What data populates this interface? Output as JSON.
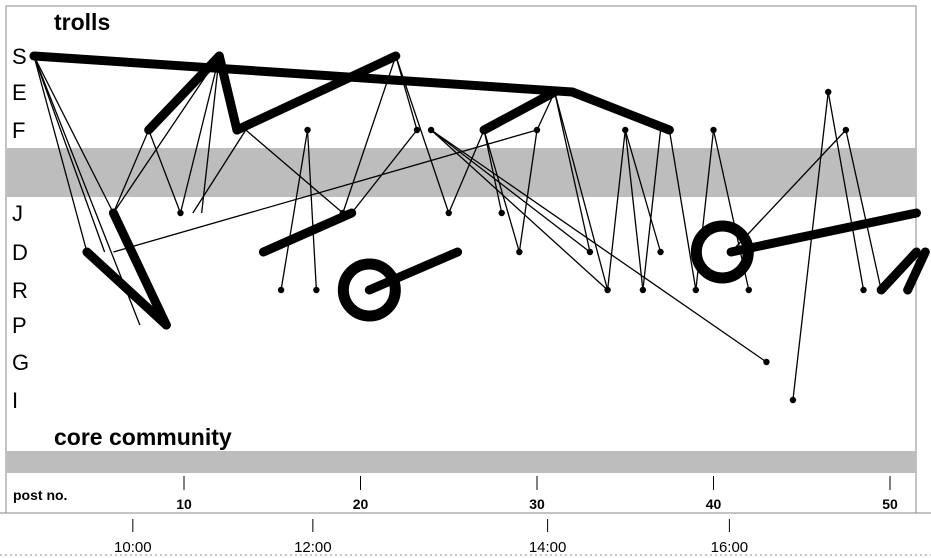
{
  "chart_data": {
    "type": "network-timeline",
    "section_labels": {
      "top": "trolls",
      "bottom": "core community"
    },
    "rows": [
      "S",
      "E",
      "F",
      "J",
      "D",
      "R",
      "P",
      "G",
      "I"
    ],
    "x_axis": {
      "label": "post no.",
      "ticks": [
        10,
        20,
        30,
        40,
        50
      ],
      "range": [
        0.5,
        52
      ]
    },
    "time_axis": {
      "ticks": [
        {
          "label": "10:00",
          "post": 7.1
        },
        {
          "label": "12:00",
          "post": 17.3
        },
        {
          "label": "14:00",
          "post": 30.6
        },
        {
          "label": "16:00",
          "post": 40.9
        }
      ]
    },
    "thin_edges": [
      [
        {
          "post": 1.5,
          "row": "S"
        },
        {
          "post": 4.5,
          "row": "D"
        }
      ],
      [
        {
          "post": 1.5,
          "row": "S"
        },
        {
          "post": 7.5,
          "row": "P"
        }
      ],
      [
        {
          "post": 1.5,
          "row": "S"
        },
        {
          "post": 6.0,
          "row": "J"
        }
      ],
      [
        {
          "post": 1.5,
          "row": "S"
        },
        {
          "post": 5.5,
          "row": "D"
        }
      ],
      [
        {
          "post": 6.0,
          "row": "J"
        },
        {
          "post": 8.0,
          "row": "F"
        }
      ],
      [
        {
          "post": 8.0,
          "row": "F"
        },
        {
          "post": 9.8,
          "row": "J"
        }
      ],
      [
        {
          "post": 9.8,
          "row": "J"
        },
        {
          "post": 12.0,
          "row": "S"
        }
      ],
      [
        {
          "post": 12.0,
          "row": "S"
        },
        {
          "post": 6.0,
          "row": "J"
        }
      ],
      [
        {
          "post": 12.0,
          "row": "S"
        },
        {
          "post": 11.0,
          "row": "J"
        }
      ],
      [
        {
          "post": 13.5,
          "row": "F"
        },
        {
          "post": 10.5,
          "row": "J"
        }
      ],
      [
        {
          "post": 13.5,
          "row": "F"
        },
        {
          "post": 19.0,
          "row": "J"
        }
      ],
      [
        {
          "post": 15.5,
          "row": "R"
        },
        {
          "post": 17.0,
          "row": "F"
        }
      ],
      [
        {
          "post": 17.0,
          "row": "F"
        },
        {
          "post": 17.5,
          "row": "R"
        }
      ],
      [
        {
          "post": 19.0,
          "row": "J"
        },
        {
          "post": 22.0,
          "row": "S"
        }
      ],
      [
        {
          "post": 22.0,
          "row": "S"
        },
        {
          "post": 23.2,
          "row": "F"
        }
      ],
      [
        {
          "post": 23.2,
          "row": "F"
        },
        {
          "post": 19.5,
          "row": "J"
        }
      ],
      [
        {
          "post": 22.0,
          "row": "S"
        },
        {
          "post": 25.0,
          "row": "J"
        }
      ],
      [
        {
          "post": 24.0,
          "row": "F"
        },
        {
          "post": 33.0,
          "row": "D"
        }
      ],
      [
        {
          "post": 24.0,
          "row": "F"
        },
        {
          "post": 34.0,
          "row": "R"
        }
      ],
      [
        {
          "post": 24.0,
          "row": "F"
        },
        {
          "post": 43.0,
          "row": "G"
        }
      ],
      [
        {
          "post": 25.0,
          "row": "J"
        },
        {
          "post": 27.0,
          "row": "F"
        }
      ],
      [
        {
          "post": 27.0,
          "row": "F"
        },
        {
          "post": 28.0,
          "row": "J"
        }
      ],
      [
        {
          "post": 27.0,
          "row": "F"
        },
        {
          "post": 29.0,
          "row": "D"
        }
      ],
      [
        {
          "post": 29.0,
          "row": "D"
        },
        {
          "post": 30.0,
          "row": "F"
        }
      ],
      [
        {
          "post": 30.0,
          "row": "F"
        },
        {
          "post": 31.0,
          "row": "E"
        }
      ],
      [
        {
          "post": 31.0,
          "row": "E"
        },
        {
          "post": 33.0,
          "row": "D"
        }
      ],
      [
        {
          "post": 31.0,
          "row": "E"
        },
        {
          "post": 34.0,
          "row": "R"
        }
      ],
      [
        {
          "post": 34.0,
          "row": "R"
        },
        {
          "post": 35.0,
          "row": "F"
        }
      ],
      [
        {
          "post": 35.0,
          "row": "F"
        },
        {
          "post": 36.0,
          "row": "R"
        }
      ],
      [
        {
          "post": 36.0,
          "row": "R"
        },
        {
          "post": 37.0,
          "row": "F"
        }
      ],
      [
        {
          "post": 35.0,
          "row": "F"
        },
        {
          "post": 37.0,
          "row": "D"
        }
      ],
      [
        {
          "post": 37.5,
          "row": "F"
        },
        {
          "post": 39.0,
          "row": "R"
        }
      ],
      [
        {
          "post": 39.0,
          "row": "R"
        },
        {
          "post": 40.0,
          "row": "F"
        }
      ],
      [
        {
          "post": 40.0,
          "row": "F"
        },
        {
          "post": 42.0,
          "row": "R"
        }
      ],
      [
        {
          "post": 41.0,
          "row": "D"
        },
        {
          "post": 47.5,
          "row": "F"
        }
      ],
      [
        {
          "post": 44.5,
          "row": "I"
        },
        {
          "post": 46.5,
          "row": "E"
        }
      ],
      [
        {
          "post": 46.5,
          "row": "E"
        },
        {
          "post": 48.5,
          "row": "R"
        }
      ],
      [
        {
          "post": 47.5,
          "row": "F"
        },
        {
          "post": 49.5,
          "row": "R"
        }
      ],
      [
        {
          "post": 6.0,
          "row": "D"
        },
        {
          "post": 30.0,
          "row": "F"
        }
      ]
    ],
    "nodes": [
      {
        "post": 8.0,
        "row": "F"
      },
      {
        "post": 9.8,
        "row": "J"
      },
      {
        "post": 15.5,
        "row": "R"
      },
      {
        "post": 17.0,
        "row": "F"
      },
      {
        "post": 17.5,
        "row": "R"
      },
      {
        "post": 19.0,
        "row": "J"
      },
      {
        "post": 23.2,
        "row": "F"
      },
      {
        "post": 24.0,
        "row": "F"
      },
      {
        "post": 25.0,
        "row": "J"
      },
      {
        "post": 28.0,
        "row": "J"
      },
      {
        "post": 29.0,
        "row": "D"
      },
      {
        "post": 30.0,
        "row": "F"
      },
      {
        "post": 33.0,
        "row": "D"
      },
      {
        "post": 34.0,
        "row": "R"
      },
      {
        "post": 35.0,
        "row": "F"
      },
      {
        "post": 36.0,
        "row": "R"
      },
      {
        "post": 37.0,
        "row": "D"
      },
      {
        "post": 39.0,
        "row": "R"
      },
      {
        "post": 40.0,
        "row": "F"
      },
      {
        "post": 42.0,
        "row": "R"
      },
      {
        "post": 43.0,
        "row": "G"
      },
      {
        "post": 44.5,
        "row": "I"
      },
      {
        "post": 46.5,
        "row": "E"
      },
      {
        "post": 47.5,
        "row": "F"
      },
      {
        "post": 48.5,
        "row": "R"
      }
    ],
    "thick_edges": [
      [
        {
          "post": 1.5,
          "row": "S"
        },
        {
          "post": 32.0,
          "row": "E"
        }
      ],
      [
        {
          "post": 32.0,
          "row": "E"
        },
        {
          "post": 37.5,
          "row": "F"
        }
      ],
      [
        {
          "post": 8.0,
          "row": "F"
        },
        {
          "post": 12.0,
          "row": "S"
        }
      ],
      [
        {
          "post": 12.0,
          "row": "S"
        },
        {
          "post": 13.0,
          "row": "F"
        }
      ],
      [
        {
          "post": 13.0,
          "row": "F"
        },
        {
          "post": 22.0,
          "row": "S"
        }
      ],
      [
        {
          "post": 27.0,
          "row": "F"
        },
        {
          "post": 31.0,
          "row": "E"
        }
      ],
      [
        {
          "post": 4.5,
          "row": "D"
        },
        {
          "post": 9.0,
          "row": "P"
        }
      ],
      [
        {
          "post": 6.0,
          "row": "J"
        },
        {
          "post": 9.0,
          "row": "P"
        }
      ],
      [
        {
          "post": 14.5,
          "row": "D"
        },
        {
          "post": 19.5,
          "row": "J"
        }
      ],
      [
        {
          "post": 20.5,
          "row": "R"
        },
        {
          "post": 25.5,
          "row": "D"
        }
      ],
      [
        {
          "post": 41.0,
          "row": "D"
        },
        {
          "post": 51.5,
          "row": "J"
        }
      ],
      [
        {
          "post": 49.5,
          "row": "R"
        },
        {
          "post": 51.5,
          "row": "D"
        }
      ],
      [
        {
          "post": 51.0,
          "row": "R"
        },
        {
          "post": 52.0,
          "row": "D"
        }
      ]
    ],
    "rings": [
      {
        "post": 20.5,
        "row": "R"
      },
      {
        "post": 40.5,
        "row": "D"
      }
    ]
  }
}
